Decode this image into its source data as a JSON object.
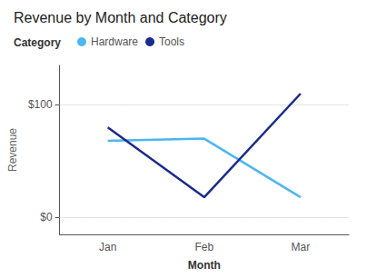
{
  "chart_data": {
    "type": "line",
    "title": "Revenue by Month and Category",
    "xlabel": "Month",
    "ylabel": "Revenue",
    "legend_title": "Category",
    "categories": [
      "Jan",
      "Feb",
      "Mar"
    ],
    "series": [
      {
        "name": "Hardware",
        "color": "#4DB6F0",
        "values": [
          68,
          70,
          18
        ]
      },
      {
        "name": "Tools",
        "color": "#1A2B8C",
        "values": [
          80,
          18,
          110
        ]
      }
    ],
    "ylim": [
      -15,
      135
    ],
    "yticks": [
      {
        "value": 0,
        "label": "$0"
      },
      {
        "value": 100,
        "label": "$100"
      }
    ],
    "grid": true,
    "legend": "upper left"
  }
}
